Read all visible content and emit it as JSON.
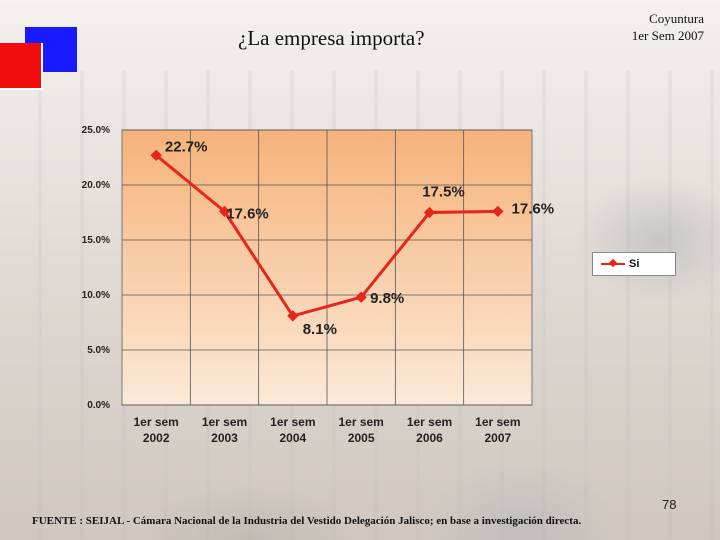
{
  "header": {
    "title": "¿La empresa importa?",
    "corner_line1": "Coyuntura",
    "corner_line2": "1er Sem 2007"
  },
  "footer": {
    "page_number": "78",
    "source": "FUENTE : SEIJAL - Cámara Nacional de la Industria del Vestido Delegación Jalisco; en base a investigación directa."
  },
  "colors": {
    "accent_blue": "#1a1aff",
    "accent_red": "#f20d0d",
    "series": "#e8251b"
  },
  "chart_data": {
    "type": "line",
    "title": "",
    "xlabel": "",
    "ylabel": "",
    "categories": [
      [
        "1er sem",
        "2002"
      ],
      [
        "1er sem",
        "2003"
      ],
      [
        "1er sem",
        "2004"
      ],
      [
        "1er sem",
        "2005"
      ],
      [
        "1er sem",
        "2006"
      ],
      [
        "1er sem",
        "2007"
      ]
    ],
    "series": [
      {
        "name": "Si",
        "values": [
          22.7,
          17.6,
          8.1,
          9.8,
          17.5,
          17.6
        ],
        "data_labels": [
          "22.7%",
          "17.6%",
          "8.1%",
          "9.8%",
          "17.5%",
          "17.6%"
        ]
      }
    ],
    "y_ticks": [
      "0.0%",
      "5.0%",
      "10.0%",
      "15.0%",
      "20.0%",
      "25.0%"
    ],
    "ylim": [
      0,
      25
    ],
    "grid": true,
    "legend": "right"
  }
}
